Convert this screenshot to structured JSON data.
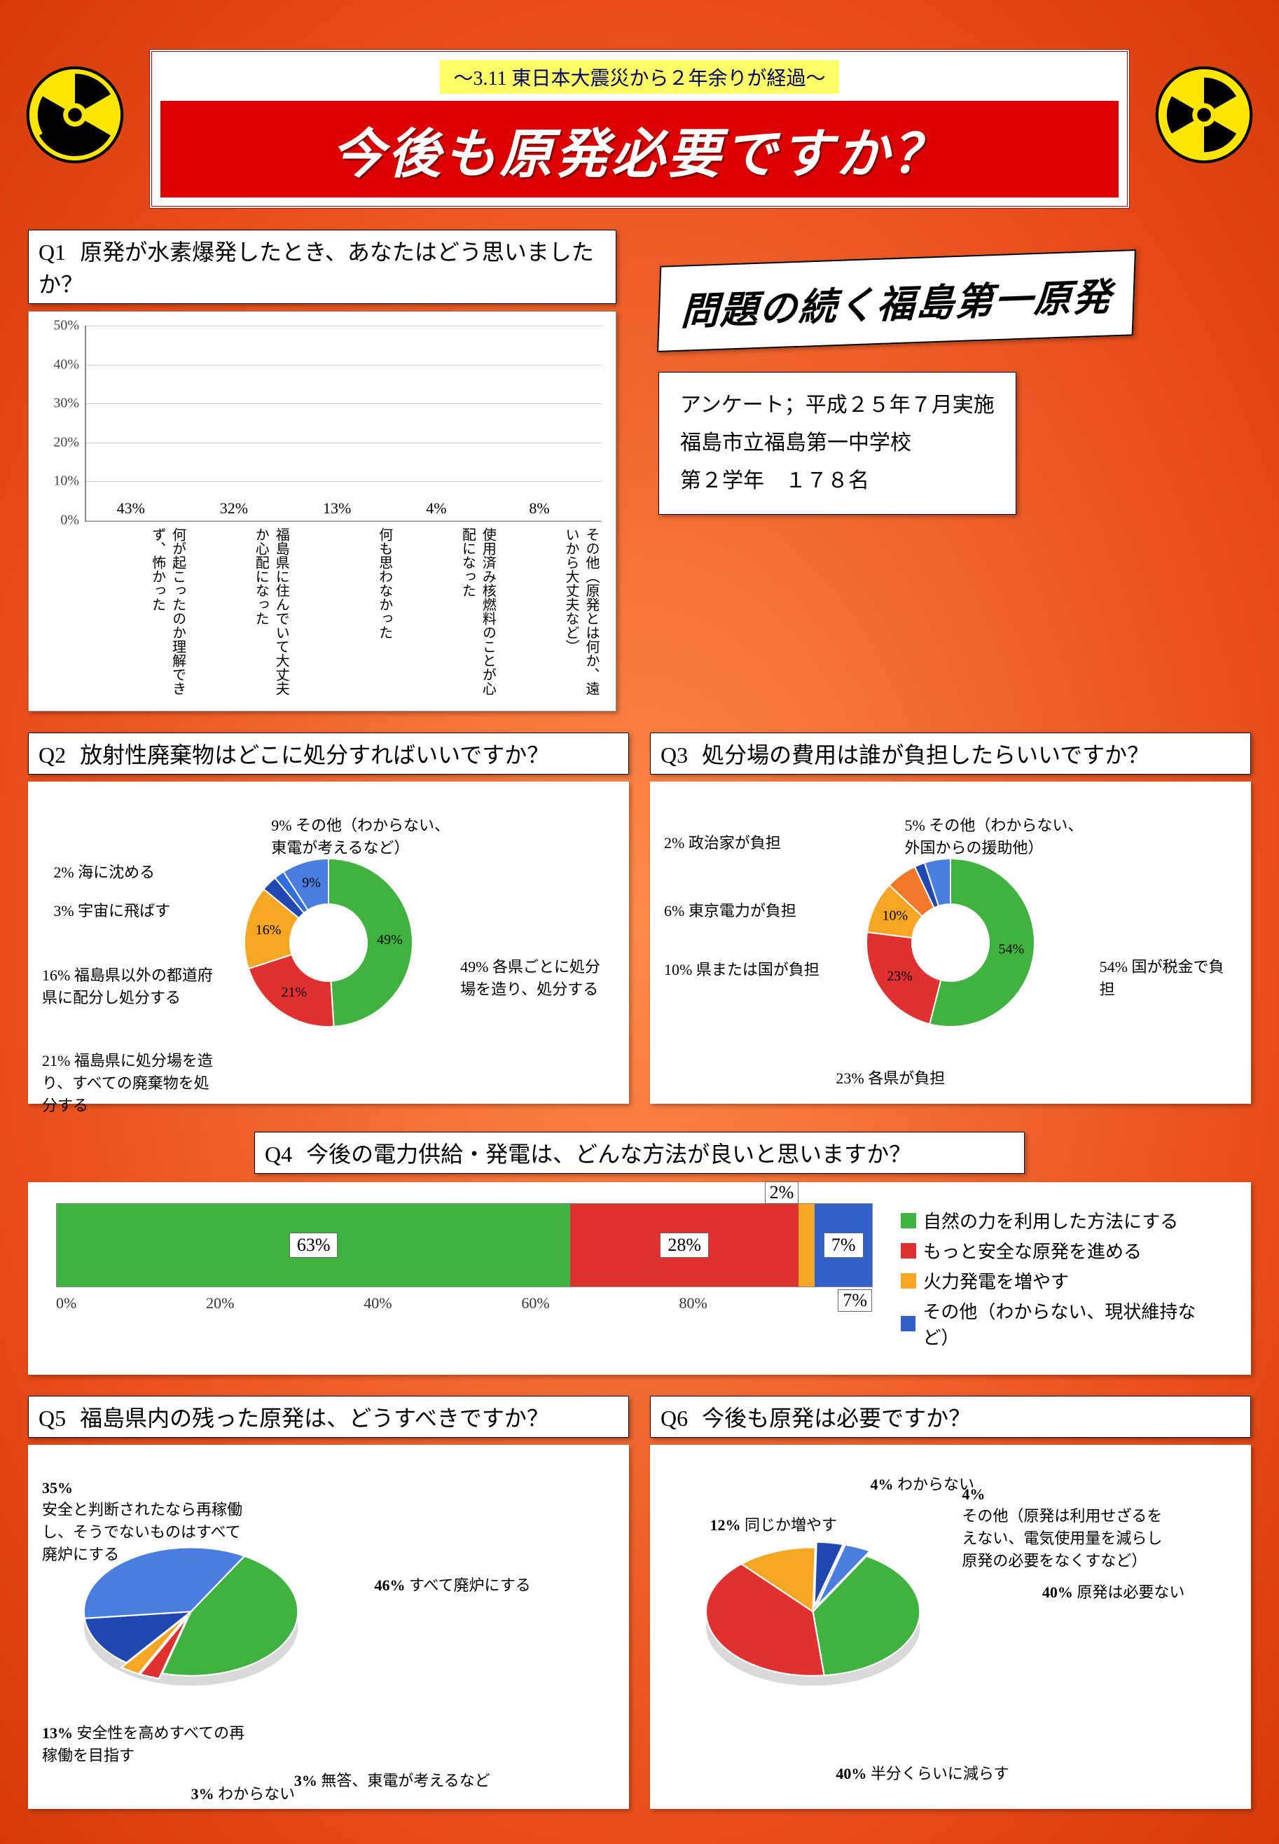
{
  "header": {
    "subtitle": "～3.11 東日本大震災から２年余りが経過～",
    "title": "今後も原発必要ですか？"
  },
  "side_title": "問題の続く福島第一原発",
  "survey_info": {
    "l1": "アンケート；平成２５年７月実施",
    "l2": "福島市立福島第一中学校",
    "l3": "第２学年　１７８名"
  },
  "colors": {
    "green": "#3fb23f",
    "red": "#e03030",
    "orange": "#f5a623",
    "blue": "#3060c8",
    "darkblue": "#20409a",
    "bar": "#2b63c4"
  },
  "q1": {
    "num": "Q1",
    "text": "原発が水素爆発したとき、あなたはどう思いましたか？",
    "ymax": 50,
    "ytick": 10,
    "bars": [
      {
        "v": 43,
        "label": "何が起こったのか理解できず、怖かった"
      },
      {
        "v": 32,
        "label": "福島県に住んでいて大丈夫か心配になった"
      },
      {
        "v": 13,
        "label": "何も思わなかった"
      },
      {
        "v": 4,
        "label": "使用済み核燃料のことが心配になった"
      },
      {
        "v": 8,
        "label": "その他（原発とは何か、遠いから大丈夫など）"
      }
    ]
  },
  "q2": {
    "num": "Q2",
    "text": "放射性廃棄物はどこに処分すればいいですか？",
    "slices": [
      {
        "v": 49,
        "c": "#3fb23f",
        "label": "各県ごとに処分場を造り、処分する",
        "lx": 73,
        "ly": 54
      },
      {
        "v": 21,
        "c": "#e03030",
        "label": "福島県に処分場を造り、すべての廃棄物を処分する",
        "lx": 0,
        "ly": 86
      },
      {
        "v": 16,
        "c": "#f5a623",
        "label": "福島県以外の都道府県に配分し処分する",
        "lx": 0,
        "ly": 57
      },
      {
        "v": 3,
        "c": "#2048b0",
        "label": "宇宙に飛ばす",
        "lx": 2,
        "ly": 35,
        "pre": "3%"
      },
      {
        "v": 2,
        "c": "#2f6edc",
        "label": "海に沈める",
        "lx": 2,
        "ly": 22,
        "pre": "2%"
      },
      {
        "v": 9,
        "c": "#4a7de0",
        "label": "その他（わからない、東電が考えるなど）",
        "lx": 40,
        "ly": 6,
        "pre": "9%"
      }
    ]
  },
  "q3": {
    "num": "Q3",
    "text": "処分場の費用は誰が負担したらいいですか？",
    "slices": [
      {
        "v": 54,
        "c": "#3fb23f",
        "label": "国が税金で負担",
        "lx": 76,
        "ly": 54
      },
      {
        "v": 23,
        "c": "#e03030",
        "label": "各県が負担",
        "lx": 30,
        "ly": 92
      },
      {
        "v": 10,
        "c": "#f5a623",
        "label": "県または国が負担",
        "lx": 0,
        "ly": 55
      },
      {
        "v": 6,
        "c": "#f07828",
        "label": "東京電力が負担",
        "lx": 0,
        "ly": 35,
        "pre": "6%"
      },
      {
        "v": 2,
        "c": "#2048b0",
        "label": "政治家が負担",
        "lx": 0,
        "ly": 12,
        "pre": "2%"
      },
      {
        "v": 5,
        "c": "#4a7de0",
        "label": "その他（わからない、外国からの援助他）",
        "lx": 42,
        "ly": 6,
        "pre": "5%"
      }
    ]
  },
  "q4": {
    "num": "Q4",
    "text": "今後の電力供給・発電は、どんな方法が良いと思いますか？",
    "segs": [
      {
        "v": 63,
        "c": "#3fb23f",
        "label": "自然の力を利用した方法にする"
      },
      {
        "v": 28,
        "c": "#e03030",
        "label": "もっと安全な原発を進める"
      },
      {
        "v": 2,
        "c": "#f5a623",
        "label": "火力発電を増やす"
      },
      {
        "v": 7,
        "c": "#3060c8",
        "label": "その他（わからない、現状維持など）"
      }
    ],
    "xticks": [
      "0%",
      "20%",
      "40%",
      "60%",
      "80%",
      "100%"
    ]
  },
  "q5": {
    "num": "Q5",
    "text": "福島県内の残った原発は、どうすべきですか？",
    "slices": [
      {
        "v": 46,
        "c": "#3fb23f",
        "label": "すべて廃炉にする",
        "lx": 58,
        "ly": 34,
        "pre": "46%"
      },
      {
        "v": 3,
        "c": "#e03030",
        "label": "無答、東電が考えるなど",
        "lx": 44,
        "ly": 92,
        "pre": "3%"
      },
      {
        "v": 3,
        "c": "#f5a623",
        "label": "わからない",
        "lx": 26,
        "ly": 96,
        "pre": "3%"
      },
      {
        "v": 13,
        "c": "#2048b0",
        "label": "安全性を高めすべての再稼働を目指す",
        "lx": 0,
        "ly": 78,
        "pre": "13%"
      },
      {
        "v": 35,
        "c": "#4a7de0",
        "label": "安全と判断されたなら再稼働し、そうでないものはすべて廃炉にする",
        "lx": 0,
        "ly": 6,
        "pre": "35%"
      }
    ]
  },
  "q6": {
    "num": "Q6",
    "text": "今後も原発は必要ですか？",
    "slices": [
      {
        "v": 40,
        "c": "#3fb23f",
        "label": "原発は必要ない",
        "lx": 66,
        "ly": 36,
        "pre": "40%"
      },
      {
        "v": 40,
        "c": "#e03030",
        "label": "半分くらいに減らす",
        "lx": 30,
        "ly": 90,
        "pre": "40%"
      },
      {
        "v": 12,
        "c": "#f5a623",
        "label": "同じか増やす",
        "lx": 8,
        "ly": 16,
        "pre": "12%"
      },
      {
        "v": 4,
        "c": "#2048b0",
        "label": "わからない",
        "lx": 36,
        "ly": 4,
        "pre": "4%"
      },
      {
        "v": 4,
        "c": "#4a7de0",
        "label": "その他（原発は利用せざるをえない、電気使用量を減らし原発の必要をなくすなど）",
        "lx": 52,
        "ly": 8,
        "pre": "4%"
      }
    ]
  }
}
